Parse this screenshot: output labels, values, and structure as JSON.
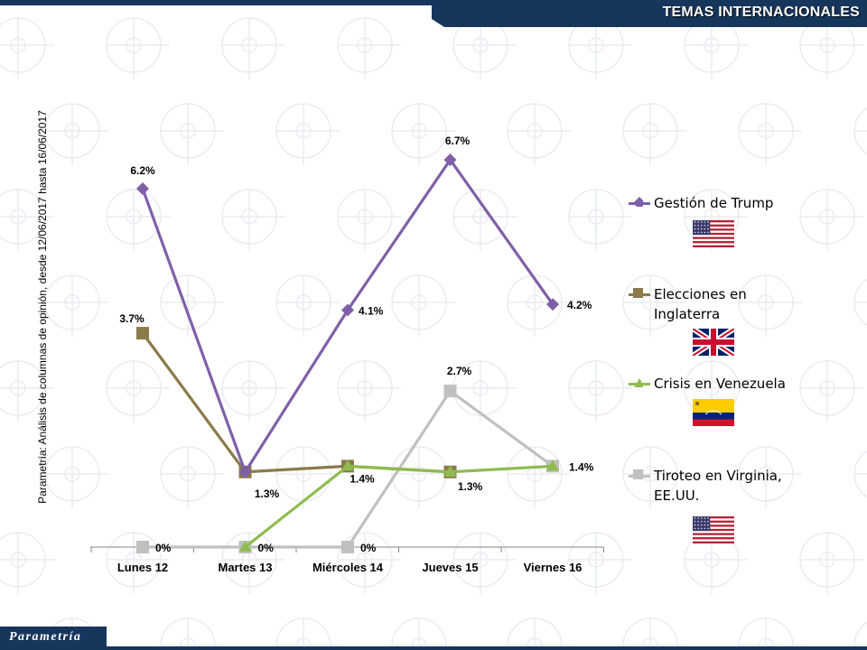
{
  "header": {
    "title": "TEMAS INTERNACIONALES"
  },
  "side_note": "Parametría: Análisis de columnas de opinión, desde 12/06/2017 hasta 16/06/2017",
  "footer": {
    "logo": "Parametría"
  },
  "colors": {
    "navy": "#16365c",
    "trump": "#7f60a8",
    "inglaterra": "#8b7a4a",
    "venezuela": "#8fbc4f",
    "virginia": "#c0c0c0"
  },
  "legend": [
    {
      "label_lines": [
        "Gestión de Trump"
      ],
      "flag": "usa-flag"
    },
    {
      "label_lines": [
        "Elecciones en",
        "Inglaterra"
      ],
      "flag": "uk-flag"
    },
    {
      "label_lines": [
        "Crisis en Venezuela"
      ],
      "flag": "venezuela-flag"
    },
    {
      "label_lines": [
        "Tiroteo en Virginia,",
        "EE.UU."
      ],
      "flag": "usa-flag"
    }
  ],
  "chart_data": {
    "type": "line",
    "categories": [
      "Lunes 12",
      "Martes 13",
      "Miércoles 14",
      "Jueves 15",
      "Viernes 16"
    ],
    "ylim": [
      0,
      7
    ],
    "grid": false,
    "legend_position": "right",
    "series": [
      {
        "name": "Gestión de Trump",
        "marker": "diamond",
        "color": "#7f60a8",
        "values": [
          6.2,
          1.3,
          4.1,
          6.7,
          4.2
        ],
        "labels": [
          "6.2%",
          "1.3%",
          "4.1%",
          "6.7%",
          "4.2%"
        ]
      },
      {
        "name": "Elecciones en Inglaterra",
        "marker": "square",
        "color": "#8b7a4a",
        "values": [
          3.7,
          1.3,
          1.4,
          1.3,
          null
        ],
        "labels": [
          "3.7%",
          "",
          "",
          "1.3%",
          ""
        ]
      },
      {
        "name": "Crisis en Venezuela",
        "marker": "triangle",
        "color": "#8fbc4f",
        "values": [
          null,
          0,
          1.4,
          1.3,
          1.4
        ],
        "labels": [
          "",
          "",
          "1.4%",
          "",
          ""
        ]
      },
      {
        "name": "Tiroteo en Virginia, EE.UU.",
        "marker": "square",
        "color": "#c0c0c0",
        "values": [
          0,
          0,
          0,
          2.7,
          1.4
        ],
        "labels": [
          "0%",
          "0%",
          "0%",
          "2.7%",
          "1.4%"
        ]
      }
    ]
  }
}
